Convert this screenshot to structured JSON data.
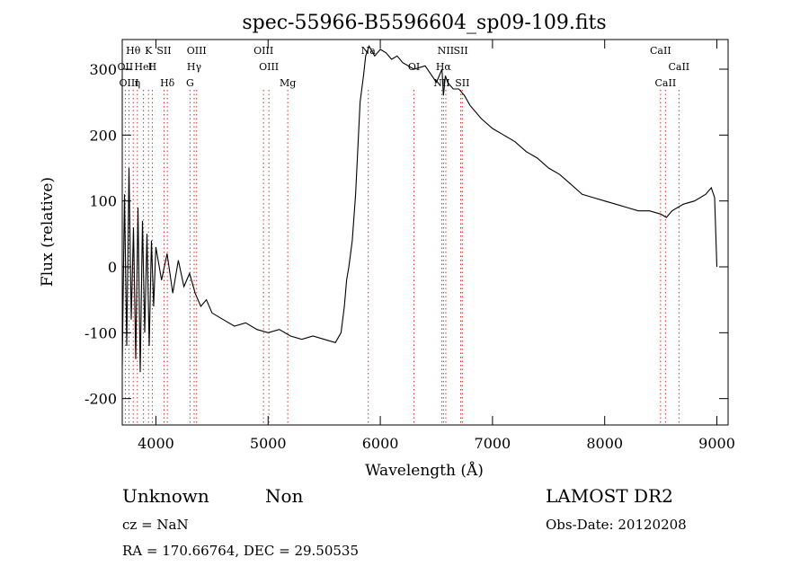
{
  "chart_data": {
    "type": "line",
    "title": "spec-55966-B5596604_sp09-109.fits",
    "xlabel": "Wavelength (Å)",
    "ylabel": "Flux (relative)",
    "xlim": [
      3700,
      9100
    ],
    "ylim": [
      -240,
      345
    ],
    "xticks": [
      4000,
      5000,
      6000,
      7000,
      8000,
      9000
    ],
    "yticks": [
      -200,
      -100,
      0,
      100,
      200,
      300
    ],
    "grid": false,
    "series": [
      {
        "x": [
          3700,
          3720,
          3740,
          3760,
          3780,
          3800,
          3820,
          3840,
          3860,
          3880,
          3900,
          3920,
          3940,
          3960,
          3980,
          4000,
          4050,
          4100,
          4150,
          4200,
          4250,
          4300,
          4350,
          4400,
          4450,
          4500,
          4600,
          4700,
          4800,
          4900,
          5000,
          5100,
          5200,
          5300,
          5400,
          5500,
          5600,
          5650,
          5680,
          5700,
          5720,
          5750,
          5780,
          5800,
          5820,
          5850,
          5870,
          5900,
          5950,
          6000,
          6050,
          6100,
          6150,
          6200,
          6300,
          6400,
          6500,
          6550,
          6563,
          6580,
          6600,
          6650,
          6700,
          6750,
          6800,
          6900,
          7000,
          7100,
          7200,
          7300,
          7400,
          7500,
          7600,
          7700,
          7800,
          7900,
          8000,
          8100,
          8200,
          8300,
          8400,
          8500,
          8550,
          8600,
          8700,
          8800,
          8900,
          8950,
          8980,
          9000
        ],
        "y": [
          -150,
          110,
          -120,
          150,
          -80,
          60,
          -140,
          90,
          -160,
          70,
          -100,
          50,
          -120,
          40,
          -60,
          30,
          -20,
          20,
          -40,
          10,
          -30,
          -10,
          -40,
          -60,
          -50,
          -70,
          -80,
          -90,
          -85,
          -95,
          -100,
          -95,
          -105,
          -110,
          -105,
          -110,
          -115,
          -100,
          -60,
          -20,
          0,
          40,
          110,
          180,
          250,
          290,
          320,
          335,
          320,
          330,
          325,
          315,
          320,
          310,
          300,
          305,
          280,
          300,
          260,
          290,
          280,
          270,
          270,
          260,
          245,
          225,
          210,
          200,
          190,
          175,
          165,
          150,
          140,
          125,
          110,
          105,
          100,
          95,
          90,
          85,
          85,
          80,
          75,
          85,
          95,
          100,
          110,
          120,
          105,
          0
        ]
      }
    ],
    "line_labels": [
      {
        "text": "Hθ",
        "x": 3798
      },
      {
        "text": "OII",
        "x": 3727
      },
      {
        "text": "OIII",
        "x": 3760
      },
      {
        "text": "K",
        "x": 3934
      },
      {
        "text": "HeI",
        "x": 3889
      },
      {
        "text": "η",
        "x": 3835
      },
      {
        "text": "SII",
        "x": 4072
      },
      {
        "text": "H",
        "x": 3968
      },
      {
        "text": "Hδ",
        "x": 4102
      },
      {
        "text": "OIII",
        "x": 4363
      },
      {
        "text": "Hγ",
        "x": 4341
      },
      {
        "text": "G",
        "x": 4304
      },
      {
        "text": "OIII",
        "x": 4959
      },
      {
        "text": "OIII",
        "x": 5007
      },
      {
        "text": "Mg",
        "x": 5175
      },
      {
        "text": "Na",
        "x": 5893
      },
      {
        "text": "OI",
        "x": 6300
      },
      {
        "text": "NII",
        "x": 6548
      },
      {
        "text": "SII",
        "x": 6717
      },
      {
        "text": "Hα",
        "x": 6563
      },
      {
        "text": "SII",
        "x": 6731
      },
      {
        "text": "NII",
        "x": 6584
      },
      {
        "text": "CaII",
        "x": 8662
      },
      {
        "text": "CaII",
        "x": 8542
      },
      {
        "text": "CaII",
        "x": 8498
      }
    ]
  },
  "info": {
    "classification": "Unknown",
    "subclass": "Non",
    "survey": "LAMOST DR2",
    "cz": "cz = NaN",
    "obs_date": "Obs-Date: 20120208",
    "coords": "RA = 170.66764, DEC =  29.50535"
  },
  "colors": {
    "line": "#000000",
    "marker": "#cc3333"
  }
}
